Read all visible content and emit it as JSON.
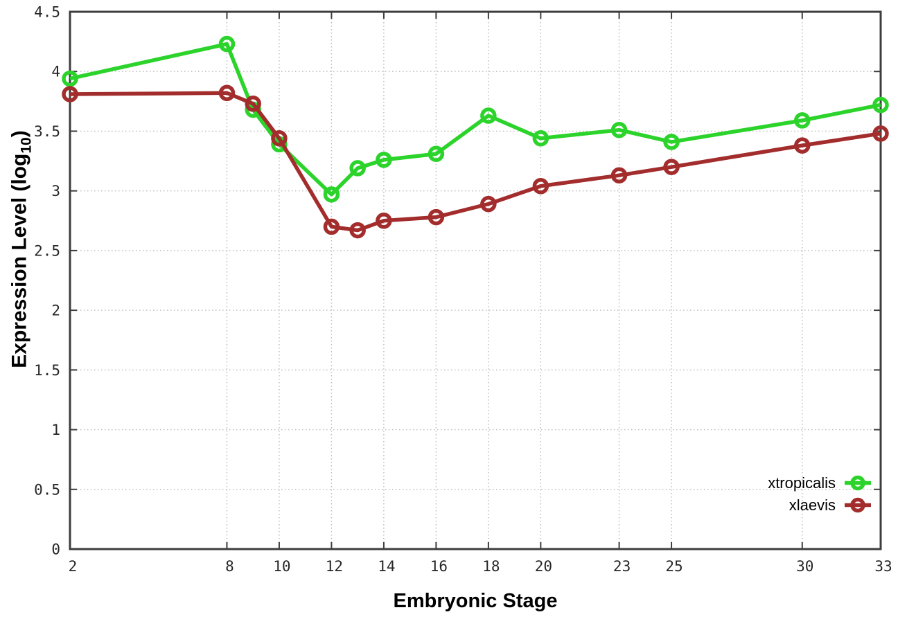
{
  "chart_data": {
    "type": "line",
    "title": "",
    "xlabel": "Embryonic Stage",
    "ylabel_main": "Expression Level (log",
    "ylabel_sub": "10",
    "ylabel_suffix": ")",
    "x": [
      2,
      8,
      9,
      10,
      12,
      13,
      14,
      16,
      18,
      20,
      23,
      25,
      30,
      33
    ],
    "series": [
      {
        "name": "xtropicalis",
        "color": "#2bd32b",
        "values": [
          3.94,
          4.23,
          3.68,
          3.39,
          2.97,
          3.19,
          3.26,
          3.31,
          3.63,
          3.44,
          3.51,
          3.41,
          3.59,
          3.72
        ]
      },
      {
        "name": "xlaevis",
        "color": "#a32d2d",
        "values": [
          3.81,
          3.82,
          3.73,
          3.44,
          2.7,
          2.67,
          2.75,
          2.78,
          2.89,
          3.04,
          3.13,
          3.2,
          3.38,
          3.48
        ]
      }
    ],
    "xticks": {
      "labels": [
        "2",
        "8",
        "10",
        "12",
        "14",
        "16",
        "18",
        "20",
        "23",
        "25",
        "30",
        "33"
      ],
      "values": [
        2,
        8,
        10,
        12,
        14,
        16,
        18,
        20,
        23,
        25,
        30,
        33
      ]
    },
    "yticks": {
      "labels": [
        "0",
        "0.5",
        "1",
        "1.5",
        "2",
        "2.5",
        "3",
        "3.5",
        "4",
        "4.5"
      ],
      "values": [
        0,
        0.5,
        1,
        1.5,
        2,
        2.5,
        3,
        3.5,
        4,
        4.5
      ]
    },
    "xlim": [
      2,
      33
    ],
    "ylim": [
      0,
      4.5
    ],
    "grid": true,
    "legend_position": "bottom-right",
    "axis_color": "#3d3d3d",
    "grid_color": "#b8b8b8",
    "text_color": "#262626",
    "marker": "open-circle"
  }
}
